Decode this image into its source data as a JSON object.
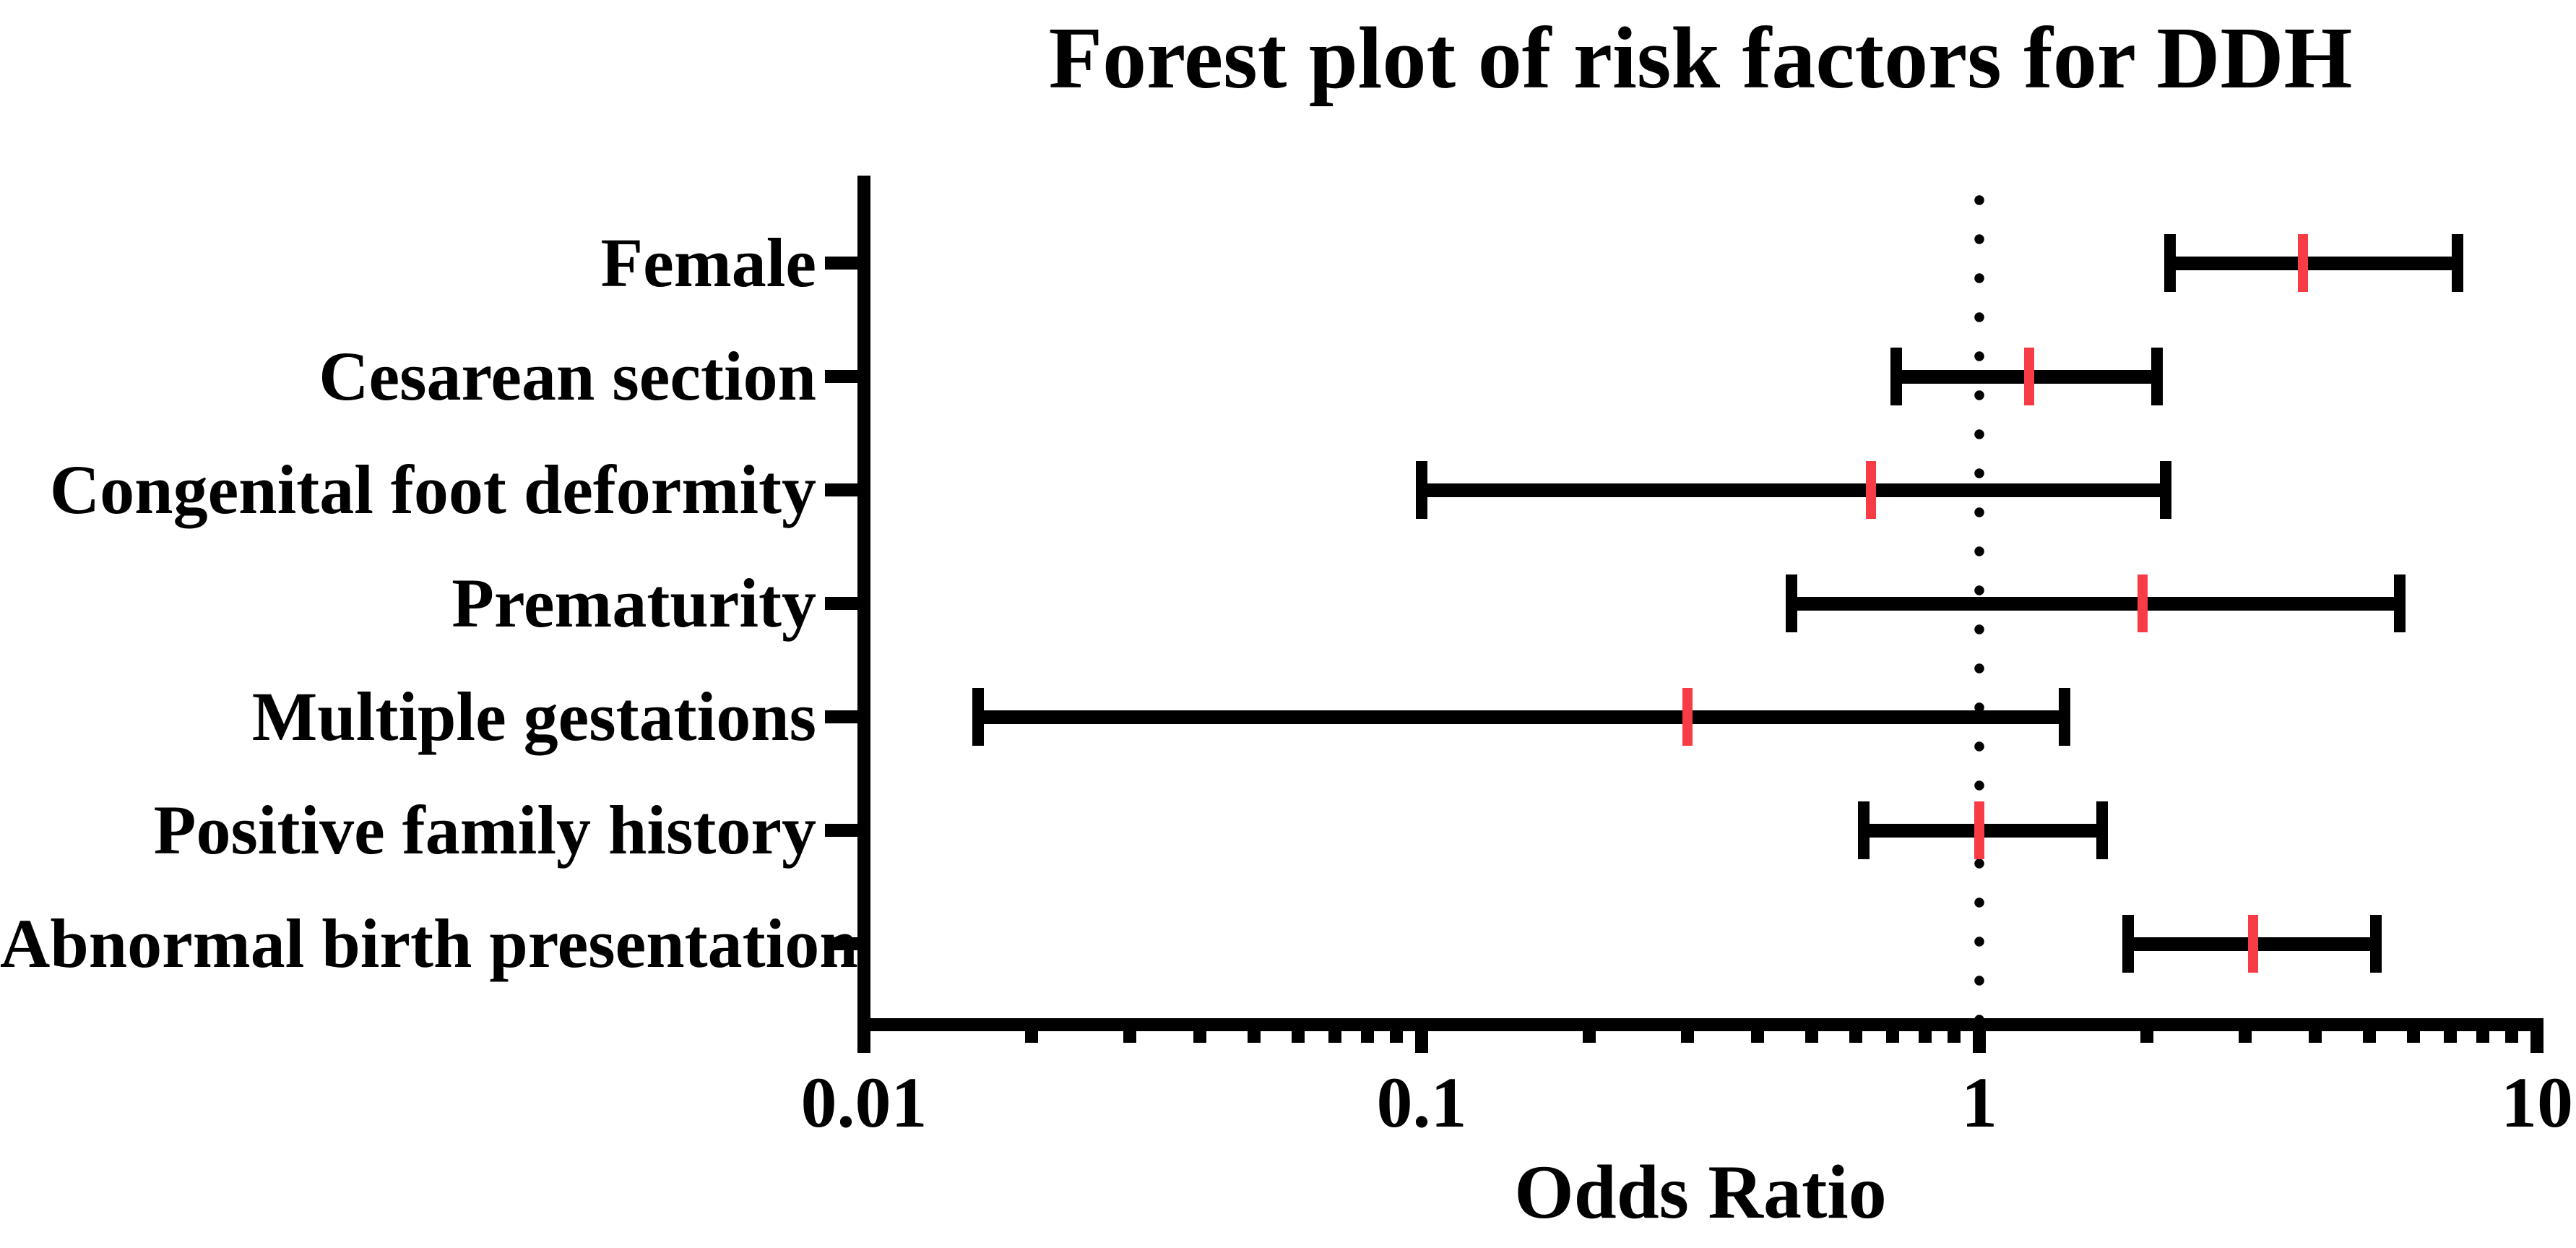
{
  "chart_data": {
    "type": "forest",
    "title": "Forest plot of risk factors for DDH",
    "xlabel": "Odds Ratio",
    "x_scale": "log10",
    "x_range": [
      0.01,
      10
    ],
    "x_ticks": [
      {
        "value": 0.01,
        "label": "0.01"
      },
      {
        "value": 0.1,
        "label": "0.1"
      },
      {
        "value": 1,
        "label": "1"
      },
      {
        "value": 10,
        "label": "10"
      }
    ],
    "reference_line": 1,
    "grid": false,
    "legend": "none",
    "rows": [
      {
        "label": "Female",
        "or": 3.8,
        "ci_low": 2.2,
        "ci_high": 7.2
      },
      {
        "label": "Cesarean section",
        "or": 1.23,
        "ci_low": 0.71,
        "ci_high": 2.08
      },
      {
        "label": "Congenital foot deformity",
        "or": 0.64,
        "ci_low": 0.1,
        "ci_high": 2.16
      },
      {
        "label": "Prematurity",
        "or": 1.96,
        "ci_low": 0.46,
        "ci_high": 5.67
      },
      {
        "label": "Multiple gestations",
        "or": 0.3,
        "ci_low": 0.016,
        "ci_high": 1.42
      },
      {
        "label": "Positive family history",
        "or": 1.0,
        "ci_low": 0.62,
        "ci_high": 1.66
      },
      {
        "label": "Abnormal birth presentation",
        "or": 3.1,
        "ci_low": 1.85,
        "ci_high": 5.14
      }
    ],
    "colors": {
      "marker": "#F83C46",
      "axis": "#000000",
      "background": "#FFFFFF"
    }
  }
}
